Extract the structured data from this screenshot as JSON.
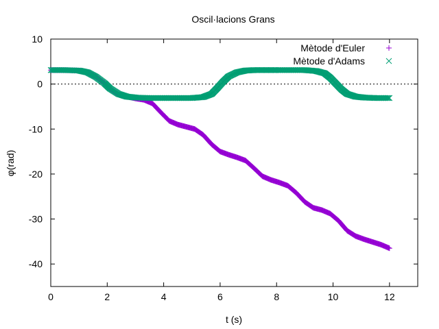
{
  "chart_data": {
    "type": "scatter",
    "title": "Oscil·lacions Grans",
    "xlabel": "t (s)",
    "ylabel": "φ(rad)",
    "xlim": [
      0,
      13
    ],
    "ylim": [
      -45,
      10
    ],
    "xticks": [
      0,
      2,
      4,
      6,
      8,
      10,
      12
    ],
    "yticks": [
      10,
      0,
      -10,
      -20,
      -30,
      -40
    ],
    "xtick_labels": [
      "0",
      "2",
      "4",
      "6",
      "8",
      "10",
      "12"
    ],
    "ytick_labels": [
      "10",
      "0",
      "-10",
      "-20",
      "-30",
      "-40"
    ],
    "grid": false,
    "zero_line": {
      "y": 0,
      "style": "dotted"
    },
    "legend_position": "top-right",
    "series": [
      {
        "name": "Mètode d'Euler",
        "marker": "+",
        "color": "#9400d3",
        "x": [
          0,
          0.5,
          1.0,
          1.3,
          1.6,
          1.9,
          2.1,
          2.4,
          2.7,
          3.0,
          3.3,
          3.6,
          3.9,
          4.2,
          4.5,
          4.8,
          5.1,
          5.4,
          5.7,
          6.0,
          6.3,
          6.6,
          6.9,
          7.2,
          7.5,
          7.8,
          8.1,
          8.4,
          8.7,
          9.0,
          9.3,
          9.6,
          9.9,
          10.2,
          10.5,
          10.8,
          11.1,
          11.4,
          11.7,
          12.0
        ],
        "y": [
          3.1,
          3.1,
          3.0,
          2.6,
          1.6,
          0.2,
          -1.1,
          -2.3,
          -2.8,
          -3.2,
          -3.5,
          -4.3,
          -6.3,
          -8.2,
          -9.0,
          -9.5,
          -10.0,
          -11.3,
          -13.4,
          -15.0,
          -15.7,
          -16.3,
          -17.0,
          -18.7,
          -20.5,
          -21.3,
          -21.9,
          -22.6,
          -24.2,
          -26.2,
          -27.5,
          -28.0,
          -28.8,
          -30.4,
          -32.6,
          -33.8,
          -34.5,
          -35.1,
          -35.7,
          -36.5
        ]
      },
      {
        "name": "Mètode d'Adams",
        "marker": "x",
        "color": "#009e73",
        "x": [
          0,
          0.5,
          1.0,
          1.3,
          1.6,
          1.9,
          2.1,
          2.4,
          2.7,
          3.0,
          3.5,
          4.0,
          4.5,
          5.0,
          5.4,
          5.7,
          5.9,
          6.1,
          6.3,
          6.6,
          6.9,
          7.2,
          7.6,
          8.0,
          8.5,
          9.0,
          9.4,
          9.7,
          9.9,
          10.1,
          10.3,
          10.5,
          10.8,
          11.1,
          11.5,
          12.0
        ],
        "y": [
          3.1,
          3.1,
          3.0,
          2.6,
          1.6,
          0.2,
          -1.0,
          -2.2,
          -2.8,
          -3.0,
          -3.1,
          -3.1,
          -3.1,
          -3.1,
          -2.9,
          -2.2,
          -0.9,
          0.5,
          1.7,
          2.6,
          3.0,
          3.1,
          3.1,
          3.1,
          3.1,
          3.1,
          2.9,
          2.4,
          1.4,
          0.1,
          -1.2,
          -2.2,
          -2.8,
          -3.0,
          -3.1,
          -3.1
        ]
      }
    ]
  }
}
